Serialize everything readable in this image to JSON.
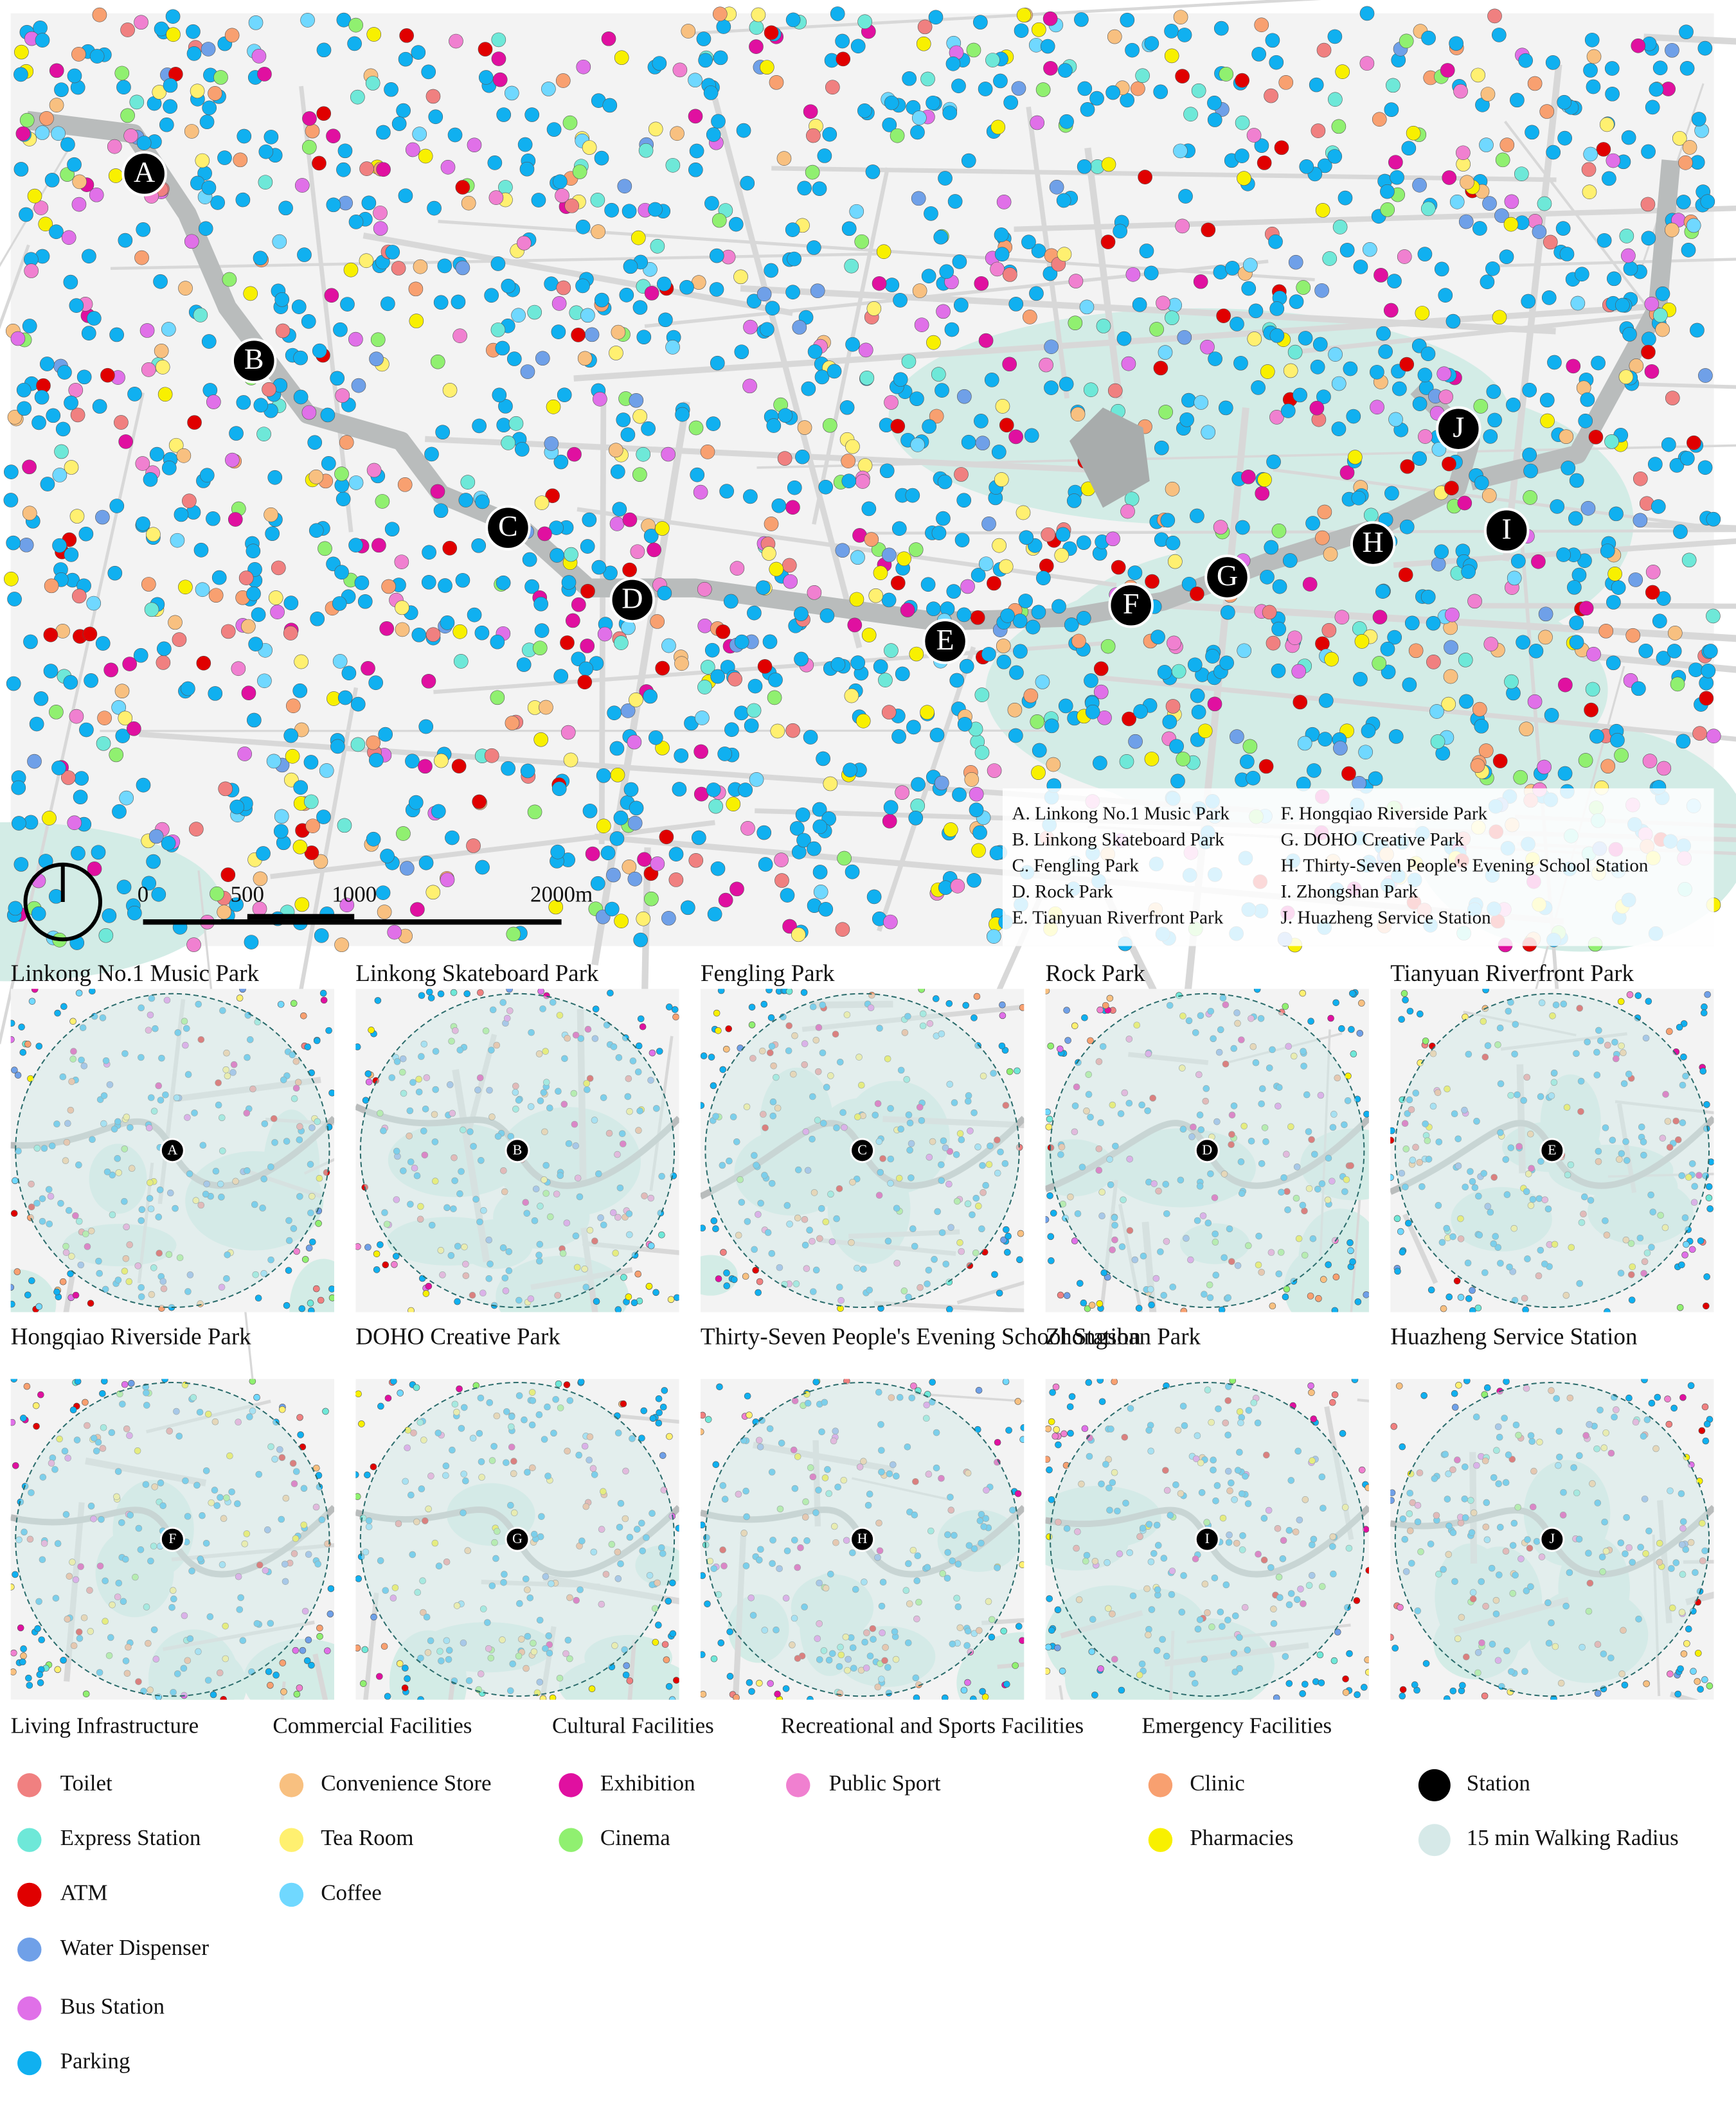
{
  "main_map": {
    "markers": [
      "A",
      "B",
      "C",
      "D",
      "E",
      "F",
      "G",
      "H",
      "I",
      "J"
    ],
    "legend_list": [
      "A. Linkong No.1 Music Park",
      "B. Linkong Skateboard Park",
      "C. Fengling Park",
      "D. Rock Park",
      "E. Tianyuan Riverfront Park",
      "F. Hongqiao Riverside Park",
      "G. DOHO Creative Park",
      "H. Thirty-Seven People's Evening School Station",
      "I. Zhongshan Park",
      "J. Huazheng Service Station"
    ],
    "scale_bar": [
      "0",
      "500",
      "1000",
      "2000m"
    ]
  },
  "panels": [
    "Linkong No.1 Music Park",
    "Linkong Skateboard Park",
    "Fengling Park",
    "Rock Park",
    "Tianyuan Riverfront Park",
    "Hongqiao Riverside Park",
    "DOHO Creative Park",
    "Thirty-Seven People's Evening School Station",
    "Zhongshan Park",
    "Huazheng Service Station"
  ],
  "legend": {
    "groups": [
      {
        "title": "Living Infrastructure",
        "items": [
          {
            "label": "Toilet",
            "color": "#f08080"
          },
          {
            "label": "Express Station",
            "color": "#6ee8d8"
          },
          {
            "label": "ATM",
            "color": "#e00000"
          },
          {
            "label": "Water Dispenser",
            "color": "#6fa0e8"
          },
          {
            "label": "Bus Station",
            "color": "#e070e8"
          },
          {
            "label": "Parking",
            "color": "#10b0f0"
          }
        ]
      },
      {
        "title": "Commercial Facilities",
        "items": [
          {
            "label": "Convenience Store",
            "color": "#f8c080"
          },
          {
            "label": "Tea Room",
            "color": "#fff070"
          },
          {
            "label": "Coffee",
            "color": "#70d8ff"
          }
        ]
      },
      {
        "title": "Cultural Facilities",
        "items": [
          {
            "label": "Exhibition",
            "color": "#e010a0"
          },
          {
            "label": "Cinema",
            "color": "#90f070"
          }
        ]
      },
      {
        "title": "Recreational and Sports Facilities",
        "items": [
          {
            "label": "Public Sport",
            "color": "#f080d0"
          }
        ]
      },
      {
        "title": "Emergency Facilities",
        "items": [
          {
            "label": "Clinic",
            "color": "#f8a070"
          },
          {
            "label": "Pharmacies",
            "color": "#f8f000"
          }
        ]
      }
    ],
    "extra": [
      {
        "label": "Station",
        "color": "#000000"
      },
      {
        "label": "15 min Walking Radius",
        "color": "#d6e9e8"
      }
    ]
  }
}
